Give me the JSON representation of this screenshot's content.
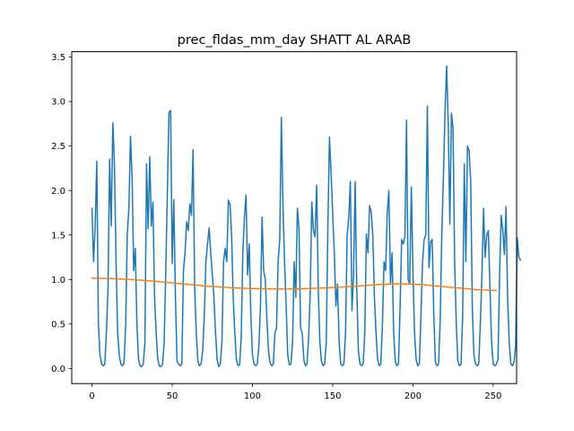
{
  "chart_data": {
    "type": "line",
    "title": "prec_fldas_mm_day SHATT AL ARAB",
    "xlabel": "",
    "ylabel": "",
    "xlim": [
      -12.6,
      264.6
    ],
    "ylim": [
      -0.17,
      3.56
    ],
    "x_ticks": [
      0,
      50,
      100,
      150,
      200,
      250
    ],
    "x_tick_labels": [
      "0",
      "50",
      "100",
      "150",
      "200",
      "250"
    ],
    "y_ticks": [
      0.0,
      0.5,
      1.0,
      1.5,
      2.0,
      2.5,
      3.0,
      3.5
    ],
    "y_tick_labels": [
      "0.0",
      "0.5",
      "1.0",
      "1.5",
      "2.0",
      "2.5",
      "3.0",
      "3.5"
    ],
    "grid": false,
    "legend": "none",
    "series": [
      {
        "color": "#1f77b4",
        "values": [
          1.8,
          1.2,
          1.6,
          2.33,
          0.5,
          0.15,
          0.05,
          0.03,
          0.05,
          0.4,
          0.9,
          2.35,
          1.6,
          2.76,
          2.3,
          1.2,
          0.4,
          0.15,
          0.05,
          0.03,
          0.06,
          0.5,
          1.5,
          1.8,
          2.61,
          2.15,
          1.1,
          1.35,
          0.5,
          0.1,
          0.03,
          0.02,
          0.05,
          0.3,
          2.3,
          1.57,
          2.38,
          1.6,
          1.87,
          0.8,
          0.4,
          0.1,
          0.03,
          0.02,
          0.05,
          0.3,
          1.1,
          2.0,
          2.88,
          2.9,
          1.18,
          1.9,
          0.8,
          0.08,
          0.05,
          0.03,
          0.05,
          1.1,
          1.3,
          1.65,
          1.55,
          1.85,
          1.72,
          2.46,
          0.9,
          0.4,
          0.08,
          0.03,
          0.05,
          0.2,
          0.6,
          1.2,
          1.4,
          1.58,
          1.3,
          1.05,
          0.8,
          0.4,
          0.1,
          0.02,
          0.05,
          0.3,
          1.2,
          1.35,
          1.2,
          1.89,
          1.85,
          1.5,
          0.8,
          0.4,
          0.1,
          0.03,
          0.04,
          0.35,
          1.3,
          1.7,
          1.95,
          1.05,
          1.4,
          0.6,
          0.15,
          0.05,
          0.03,
          0.05,
          0.25,
          0.7,
          1.7,
          1.1,
          1.0,
          0.55,
          0.2,
          0.06,
          0.03,
          0.05,
          0.4,
          0.45,
          1.2,
          1.45,
          2.82,
          1.85,
          1.2,
          0.7,
          0.15,
          0.04,
          0.05,
          0.3,
          1.2,
          0.8,
          1.8,
          1.58,
          0.45,
          0.4,
          0.1,
          0.03,
          0.05,
          0.35,
          0.85,
          1.87,
          1.55,
          1.48,
          2.06,
          0.9,
          0.3,
          0.08,
          0.03,
          0.05,
          0.3,
          1.6,
          2.6,
          2.2,
          1.75,
          1.3,
          0.7,
          0.95,
          0.3,
          0.05,
          0.03,
          0.05,
          0.4,
          1.5,
          1.7,
          2.1,
          0.65,
          1.05,
          2.1,
          0.9,
          0.2,
          0.05,
          0.03,
          0.05,
          0.4,
          1.51,
          1.3,
          1.83,
          1.76,
          1.5,
          0.8,
          0.4,
          0.1,
          0.03,
          0.05,
          0.5,
          1.2,
          1.1,
          1.75,
          2.0,
          0.95,
          1.3,
          0.4,
          0.08,
          0.03,
          0.05,
          0.7,
          1.45,
          1.4,
          1.48,
          2.79,
          1.0,
          0.95,
          2.04,
          1.1,
          0.4,
          0.1,
          0.03,
          0.05,
          0.6,
          1.2,
          1.45,
          1.5,
          2.95,
          1.13,
          1.42,
          1.45,
          0.6,
          0.07,
          0.03,
          0.05,
          0.55,
          1.52,
          2.15,
          2.9,
          3.4,
          2.75,
          1.62,
          2.87,
          2.7,
          1.2,
          0.5,
          0.08,
          0.03,
          0.05,
          0.6,
          2.3,
          1.2,
          2.5,
          2.45,
          2.1,
          0.7,
          0.15,
          0.05,
          0.03,
          0.05,
          0.5,
          1.05,
          1.8,
          1.25,
          1.5,
          1.55,
          0.9,
          0.3,
          0.05,
          0.03,
          0.05,
          0.1,
          1.05,
          1.72,
          1.55,
          1.28,
          1.82,
          0.8,
          0.3,
          0.05,
          0.03,
          0.07,
          0.25,
          1.47,
          1.25,
          1.22
        ]
      },
      {
        "color": "#ff7f0e",
        "x": [
          0,
          12,
          24,
          36,
          48,
          60,
          72,
          84,
          96,
          108,
          120,
          132,
          144,
          156,
          168,
          180,
          192,
          204,
          216,
          228,
          240,
          252
        ],
        "values": [
          1.015,
          1.01,
          1.0,
          0.985,
          0.965,
          0.945,
          0.925,
          0.91,
          0.9,
          0.895,
          0.893,
          0.897,
          0.905,
          0.915,
          0.93,
          0.945,
          0.952,
          0.945,
          0.925,
          0.905,
          0.885,
          0.875
        ]
      }
    ]
  }
}
